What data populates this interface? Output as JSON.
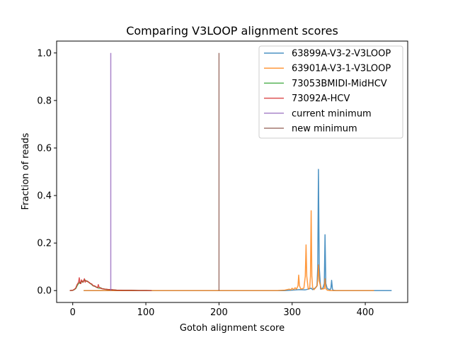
{
  "chart_data": {
    "type": "line",
    "title": "Comparing V3LOOP alignment scores",
    "xlabel": "Gotoh alignment score",
    "ylabel": "Fraction of reads",
    "xlim": [
      -22,
      458
    ],
    "ylim": [
      -0.05,
      1.05
    ],
    "xticks": [
      0,
      100,
      200,
      300,
      400
    ],
    "yticks": [
      0.0,
      0.2,
      0.4,
      0.6,
      0.8,
      1.0
    ],
    "xtick_labels": [
      "0",
      "100",
      "200",
      "300",
      "400"
    ],
    "ytick_labels": [
      "0.0",
      "0.2",
      "0.4",
      "0.6",
      "0.8",
      "1.0"
    ],
    "legend_position": "top-right",
    "series": [
      {
        "name": "63899A-V3-2-V3LOOP",
        "color": "#1f77b4",
        "x": [
          15,
          100,
          200,
          290,
          300,
          310,
          318,
          322,
          326,
          328,
          332,
          334,
          335,
          336,
          337,
          339,
          342,
          344,
          345,
          346,
          348,
          352,
          353,
          354,
          355,
          356,
          360,
          400,
          412,
          436
        ],
        "y": [
          0.0,
          0.0,
          0.0,
          0.0,
          0.002,
          0.004,
          0.003,
          0.006,
          0.01,
          0.004,
          0.012,
          0.02,
          0.1,
          0.51,
          0.1,
          0.006,
          0.01,
          0.03,
          0.235,
          0.03,
          0.008,
          0.004,
          0.01,
          0.043,
          0.008,
          0.001,
          0.0,
          0.0,
          0.0,
          0.0
        ]
      },
      {
        "name": "63901A-V3-1-V3LOOP",
        "color": "#ff7f0e",
        "x": [
          15,
          100,
          200,
          280,
          290,
          296,
          298,
          300,
          302,
          304,
          306,
          308,
          309,
          310,
          312,
          316,
          318,
          319,
          320,
          322,
          324,
          325,
          326,
          327,
          328,
          330,
          334,
          335,
          336,
          337,
          340,
          344,
          345,
          346,
          348,
          352,
          360,
          400,
          412
        ],
        "y": [
          0.0,
          0.0,
          0.0,
          0.0,
          0.002,
          0.006,
          0.003,
          0.01,
          0.004,
          0.012,
          0.006,
          0.02,
          0.065,
          0.02,
          0.006,
          0.01,
          0.06,
          0.192,
          0.06,
          0.006,
          0.01,
          0.06,
          0.336,
          0.06,
          0.012,
          0.004,
          0.02,
          0.05,
          0.108,
          0.04,
          0.006,
          0.008,
          0.05,
          0.008,
          0.002,
          0.0,
          0.0,
          0.0,
          0.0
        ]
      },
      {
        "name": "73053BMIDI-MidHCV",
        "color": "#2ca02c",
        "x": [
          -4,
          0,
          2,
          4,
          6,
          8,
          10,
          11,
          12,
          14,
          16,
          18,
          20,
          22,
          24,
          26,
          28,
          30,
          32,
          34,
          36,
          38,
          40,
          44,
          48,
          52,
          56,
          60,
          70,
          80,
          90,
          100,
          108
        ],
        "y": [
          0.0,
          0.001,
          0.004,
          0.008,
          0.02,
          0.03,
          0.035,
          0.03,
          0.04,
          0.035,
          0.045,
          0.042,
          0.038,
          0.035,
          0.03,
          0.025,
          0.02,
          0.018,
          0.015,
          0.012,
          0.01,
          0.012,
          0.008,
          0.006,
          0.005,
          0.004,
          0.003,
          0.002,
          0.001,
          0.001,
          0.0005,
          0.0005,
          0.0
        ]
      },
      {
        "name": "73092A-HCV",
        "color": "#d62728",
        "x": [
          -4,
          0,
          2,
          4,
          6,
          8,
          9,
          10,
          11,
          12,
          14,
          16,
          17,
          18,
          20,
          22,
          24,
          26,
          28,
          30,
          32,
          34,
          35,
          36,
          38,
          40,
          44,
          48,
          52,
          56,
          60,
          70,
          80,
          90,
          100,
          108
        ],
        "y": [
          0.0,
          0.001,
          0.005,
          0.01,
          0.025,
          0.035,
          0.054,
          0.03,
          0.03,
          0.045,
          0.035,
          0.05,
          0.035,
          0.04,
          0.04,
          0.035,
          0.03,
          0.028,
          0.02,
          0.02,
          0.015,
          0.012,
          0.025,
          0.015,
          0.01,
          0.008,
          0.006,
          0.005,
          0.004,
          0.003,
          0.002,
          0.001,
          0.001,
          0.0005,
          0.0005,
          0.0
        ]
      },
      {
        "name": "current minimum",
        "color": "#9467bd",
        "x": [
          52,
          52
        ],
        "y": [
          0,
          1
        ]
      },
      {
        "name": "new minimum",
        "color": "#8c564b",
        "x": [
          200,
          200
        ],
        "y": [
          0,
          1
        ]
      }
    ]
  }
}
